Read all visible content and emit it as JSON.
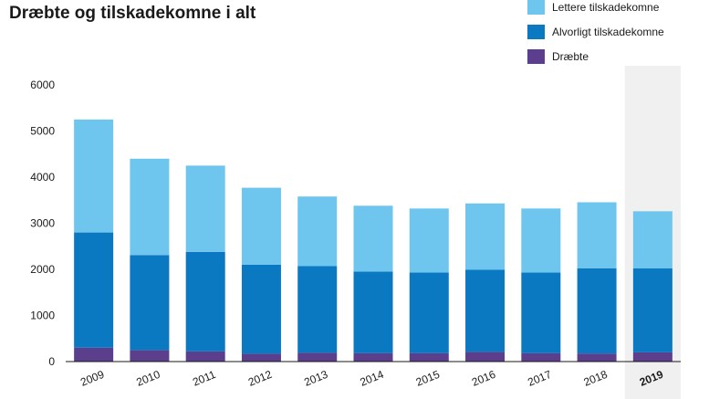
{
  "chart_data": {
    "type": "bar",
    "stacked": true,
    "title": "Dræbte og tilskadekomne i alt",
    "xlabel": "",
    "ylabel": "",
    "categories": [
      "2009",
      "2010",
      "2011",
      "2012",
      "2013",
      "2014",
      "2015",
      "2016",
      "2017",
      "2018",
      "2019"
    ],
    "highlighted_category": "2019",
    "ylim": [
      0,
      6000
    ],
    "yticks": [
      0,
      1000,
      2000,
      3000,
      4000,
      5000,
      6000
    ],
    "grid": false,
    "legend_position": "top-right",
    "series": [
      {
        "name": "Dræbte",
        "color": "#5b3f8c",
        "values": [
          300,
          250,
          220,
          170,
          190,
          180,
          180,
          210,
          180,
          175,
          200
        ]
      },
      {
        "name": "Alvorligt tilskadekomne",
        "color": "#0b78c2",
        "values": [
          2500,
          2060,
          2160,
          1930,
          1880,
          1770,
          1750,
          1780,
          1750,
          1850,
          1820
        ]
      },
      {
        "name": "Lettere tilskadekomne",
        "color": "#6ec6ef",
        "values": [
          2450,
          2090,
          1870,
          1670,
          1510,
          1430,
          1390,
          1440,
          1390,
          1430,
          1240
        ]
      }
    ]
  }
}
